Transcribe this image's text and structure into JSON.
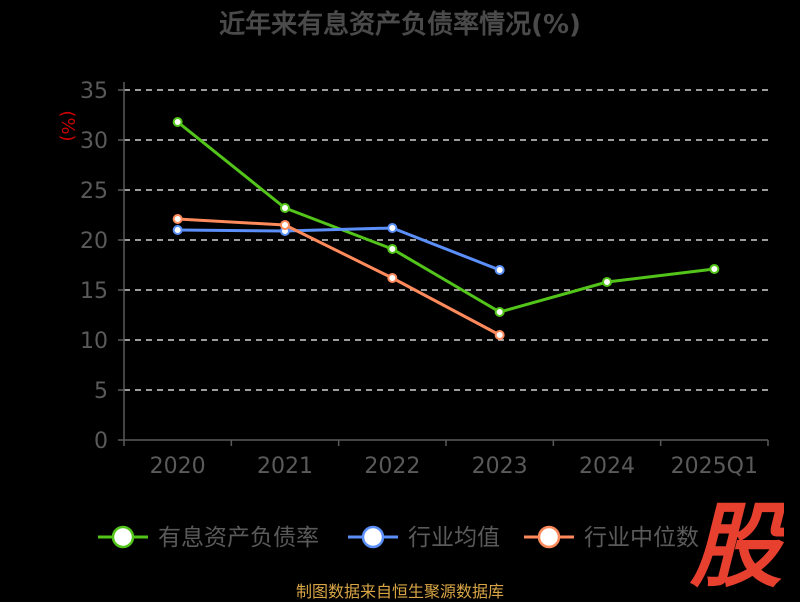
{
  "title": "近年来有息资产负债率情况(%)",
  "source": "制图数据来自恒生聚源数据库",
  "watermark": "股",
  "colors": {
    "grid": "#cfcfcf",
    "axis": "#5a5a5a",
    "tick_text": "#5a5a5a",
    "unit_text": "#cc0000",
    "legend_text": "#5a5a5a",
    "watermark": "#e8402f"
  },
  "chart_data": {
    "type": "line",
    "ylabel": "(%)",
    "ylim": [
      0,
      35
    ],
    "yticks": [
      0,
      5,
      10,
      15,
      20,
      25,
      30,
      35
    ],
    "grid": true,
    "legend_position": "bottom",
    "categories": [
      "2020",
      "2021",
      "2022",
      "2023",
      "2024",
      "2025Q1"
    ],
    "series": [
      {
        "name": "有息资产负债率",
        "color": "#52c41a",
        "values": [
          31.8,
          23.2,
          19.1,
          12.8,
          15.8,
          17.1
        ]
      },
      {
        "name": "行业均值",
        "color": "#5b8ff9",
        "values": [
          21.0,
          20.9,
          21.2,
          17.0,
          null,
          null
        ]
      },
      {
        "name": "行业中位数",
        "color": "#ff8a5c",
        "values": [
          22.1,
          21.5,
          16.2,
          10.5,
          null,
          null
        ]
      }
    ]
  }
}
